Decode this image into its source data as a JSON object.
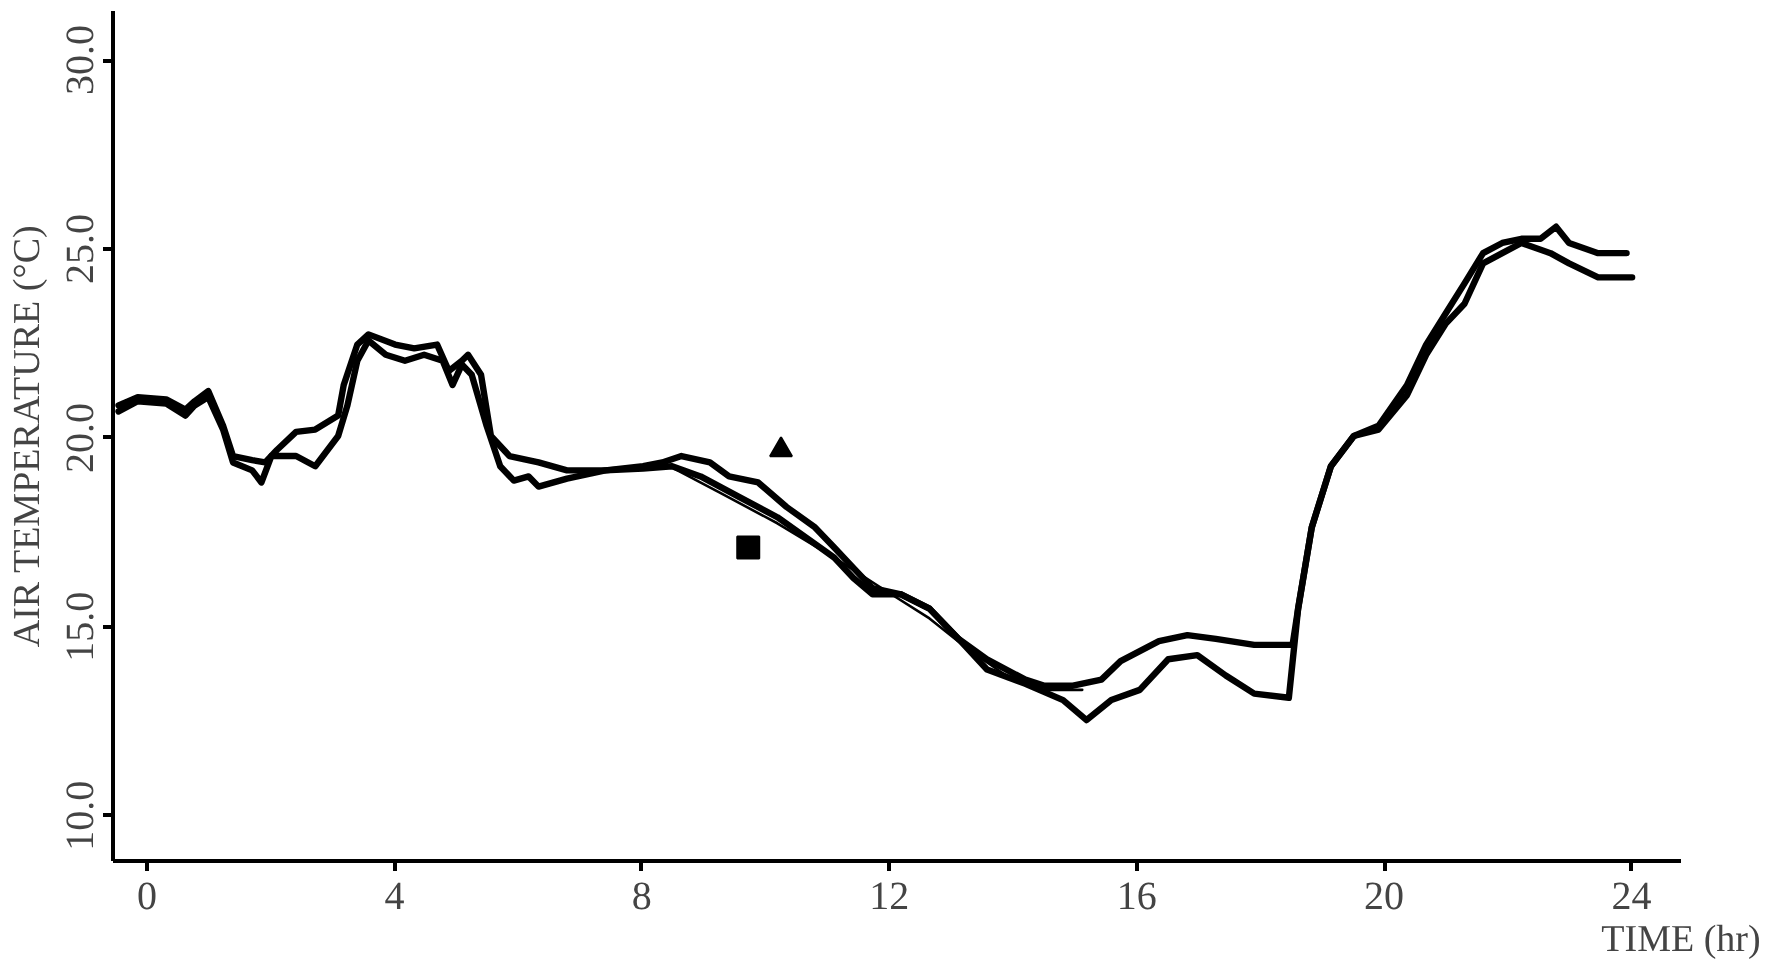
{
  "chart_data": {
    "type": "line",
    "xlabel": "TIME (hr)",
    "ylabel": "AIR TEMPERATURE (°C)",
    "xlim": [
      -0.55,
      24.8
    ],
    "ylim": [
      8.8,
      31.3
    ],
    "xticks": [
      0,
      4,
      8,
      12,
      16,
      20,
      24
    ],
    "yticks": [
      {
        "value": 10,
        "label": "10.0"
      },
      {
        "value": 15,
        "label": "15.0"
      },
      {
        "value": 20,
        "label": "20.0"
      },
      {
        "value": 25,
        "label": "25.0"
      },
      {
        "value": 30,
        "label": "30.0"
      }
    ],
    "grid": false,
    "line_style": "solid",
    "series": [
      {
        "color": "#000000",
        "x": [
          -0.46,
          -0.15,
          0.31,
          0.62,
          0.77,
          0.99,
          1.23,
          1.39,
          1.7,
          1.91,
          2.1,
          2.41,
          2.72,
          3.09,
          3.18,
          3.4,
          3.58,
          4.01,
          4.32,
          4.69,
          4.88,
          5.09,
          5.19,
          5.4,
          5.56,
          5.86,
          6.33,
          6.79,
          7.41,
          8.02,
          8.33,
          8.64,
          9.1,
          9.41,
          9.88,
          10.34,
          10.8,
          11.11,
          11.42,
          11.73,
          12.19,
          12.65,
          13.12,
          13.58,
          14.2,
          14.51,
          14.97,
          15.43,
          15.74,
          16.36,
          16.82,
          17.28,
          17.9,
          18.52,
          18.61,
          18.83,
          19.14,
          19.51,
          19.91,
          20.37,
          20.68,
          20.99,
          21.3,
          21.6,
          21.91,
          22.22,
          22.53,
          22.78,
          22.99,
          23.46,
          23.92
        ],
        "values": [
          20.86,
          21.08,
          21.02,
          20.75,
          20.97,
          21.24,
          20.32,
          19.52,
          19.41,
          19.35,
          19.68,
          20.16,
          20.22,
          20.59,
          21.4,
          22.47,
          22.74,
          22.47,
          22.37,
          22.47,
          21.77,
          22.04,
          22.2,
          21.67,
          20.05,
          19.52,
          19.35,
          19.14,
          19.14,
          19.25,
          19.35,
          19.52,
          19.35,
          18.98,
          18.82,
          18.17,
          17.63,
          17.1,
          16.56,
          16.02,
          15.86,
          15.48,
          14.68,
          14.14,
          13.6,
          13.44,
          13.44,
          13.6,
          14.09,
          14.62,
          14.78,
          14.68,
          14.52,
          14.52,
          15.48,
          17.63,
          19.25,
          20.05,
          20.32,
          21.4,
          22.47,
          23.28,
          24.09,
          24.89,
          25.16,
          25.27,
          25.27,
          25.59,
          25.16,
          24.89,
          24.89
        ]
      },
      {
        "color": "#000000",
        "x": [
          -0.46,
          -0.15,
          0.31,
          0.62,
          0.77,
          0.99,
          1.23,
          1.39,
          1.7,
          1.85,
          2.01,
          2.41,
          2.72,
          3.09,
          3.24,
          3.4,
          3.58,
          3.86,
          4.17,
          4.48,
          4.78,
          4.94,
          5.09,
          5.25,
          5.49,
          5.71,
          5.93,
          6.17,
          6.33,
          6.79,
          7.41,
          8.02,
          8.49,
          8.95,
          9.57,
          10.19,
          10.65,
          11.11,
          11.42,
          11.73,
          12.19,
          12.65,
          13.12,
          13.58,
          14.2,
          14.81,
          15.19,
          15.59,
          16.05,
          16.51,
          16.98,
          17.44,
          17.9,
          18.46,
          18.61,
          18.83,
          19.14,
          19.51,
          19.91,
          20.37,
          20.68,
          20.99,
          21.3,
          21.6,
          21.91,
          22.22,
          22.69,
          22.99,
          23.46,
          24.01
        ],
        "values": [
          20.7,
          20.97,
          20.91,
          20.59,
          20.86,
          21.08,
          20.22,
          19.35,
          19.14,
          18.82,
          19.52,
          19.52,
          19.25,
          20.05,
          20.86,
          22.04,
          22.58,
          22.2,
          22.04,
          22.2,
          22.04,
          21.4,
          21.94,
          21.67,
          20.32,
          19.25,
          18.87,
          18.98,
          18.71,
          18.92,
          19.14,
          19.19,
          19.25,
          18.98,
          18.44,
          17.9,
          17.37,
          16.83,
          16.29,
          15.86,
          15.86,
          15.48,
          14.68,
          13.87,
          13.49,
          13.06,
          12.53,
          13.06,
          13.33,
          14.14,
          14.25,
          13.71,
          13.23,
          13.12,
          15.48,
          17.63,
          19.25,
          20.05,
          20.22,
          21.13,
          22.2,
          23.01,
          23.55,
          24.62,
          24.89,
          25.16,
          24.89,
          24.62,
          24.25,
          24.25
        ]
      },
      {
        "color": "#000000",
        "x": [
          8.33,
          9.26,
          10.19,
          11.11,
          11.88,
          12.65,
          13.27,
          13.89,
          14.51,
          15.12
        ],
        "values": [
          19.35,
          18.55,
          17.74,
          16.83,
          16.02,
          15.22,
          14.41,
          13.71,
          13.33,
          13.33
        ]
      },
      {
        "type": "scatter",
        "marker": "triangle",
        "color": "#000000",
        "x": [
          10.25
        ],
        "values": [
          19.68
        ]
      },
      {
        "type": "scatter",
        "marker": "square",
        "color": "#000000",
        "x": [
          9.72
        ],
        "values": [
          17.1
        ]
      }
    ]
  }
}
